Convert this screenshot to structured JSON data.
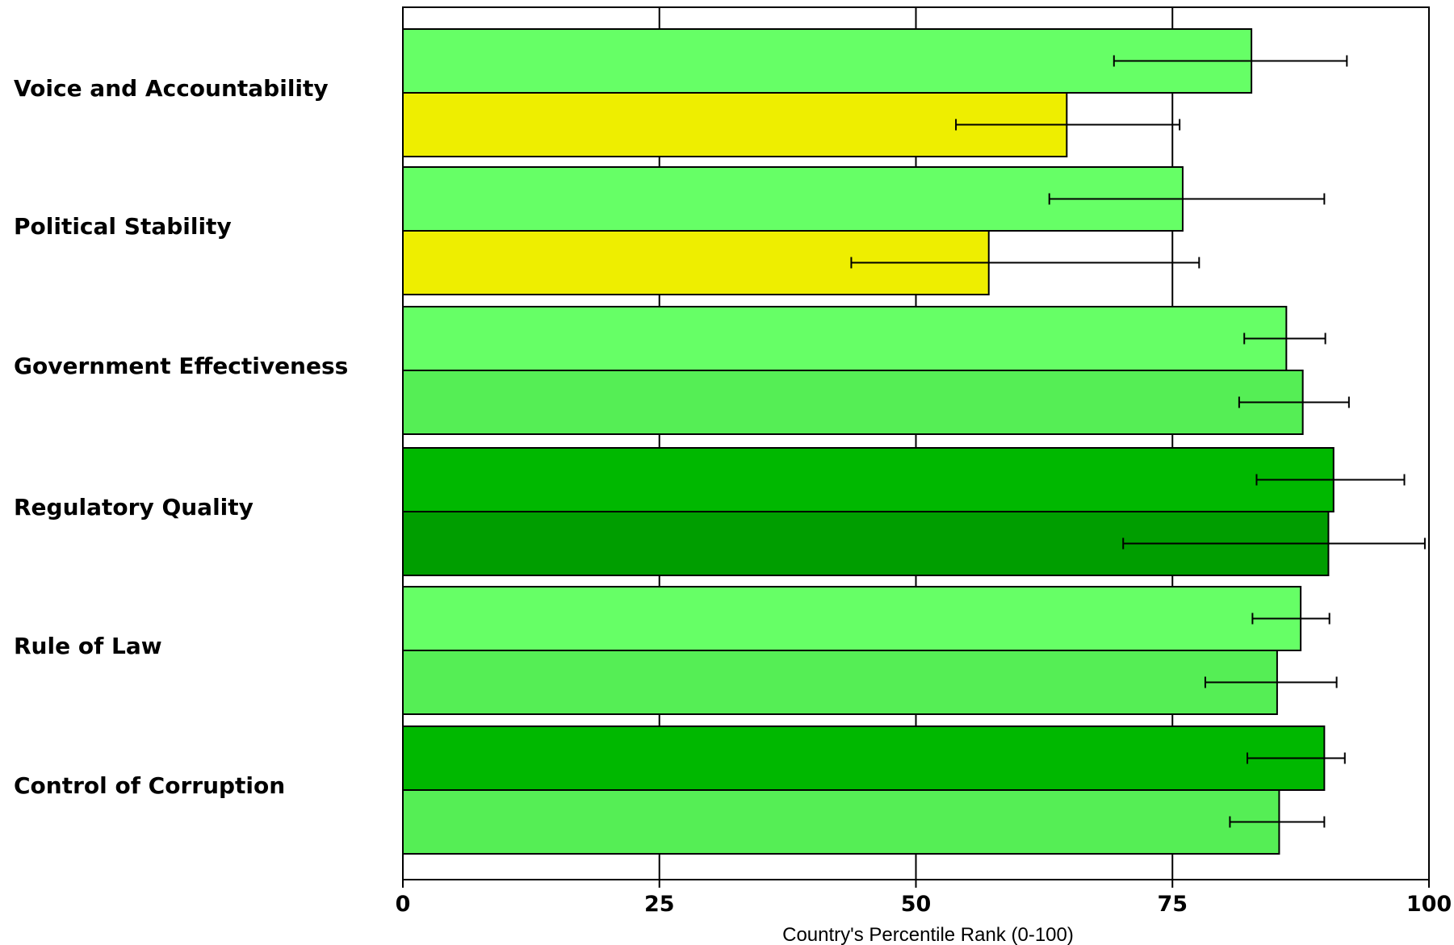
{
  "chart_data": {
    "type": "bar",
    "orientation": "horizontal",
    "title": "",
    "xlabel": "Country's Percentile Rank (0-100)",
    "ylabel": "",
    "xlim": [
      0,
      100
    ],
    "x_ticks": [
      "0",
      "25",
      "50",
      "75",
      "100"
    ],
    "grid": "vertical",
    "categories": [
      "Voice and Accountability",
      "Political Stability",
      "Government Effectiveness",
      "Regulatory Quality",
      "Rule of Law",
      "Control of Corruption"
    ],
    "series": [
      {
        "values": [
          82.7,
          76.0,
          86.1,
          90.7,
          87.5,
          89.8
        ],
        "error_low": [
          69.3,
          63.0,
          82.0,
          83.2,
          82.8,
          82.3
        ],
        "error_high": [
          92.0,
          89.8,
          89.9,
          97.6,
          90.3,
          91.8
        ],
        "colors": [
          "#66ff66",
          "#66ff66",
          "#66ff66",
          "#00b800",
          "#66ff66",
          "#00b800"
        ]
      },
      {
        "values": [
          64.7,
          57.1,
          87.7,
          90.2,
          85.2,
          85.4
        ],
        "error_low": [
          53.9,
          43.7,
          81.5,
          70.2,
          78.2,
          80.6
        ],
        "error_high": [
          75.7,
          77.6,
          92.2,
          99.6,
          91.0,
          89.8
        ],
        "colors": [
          "#eeee00",
          "#eeee00",
          "#55ee55",
          "#009e00",
          "#55ee55",
          "#55ee55"
        ]
      }
    ]
  }
}
